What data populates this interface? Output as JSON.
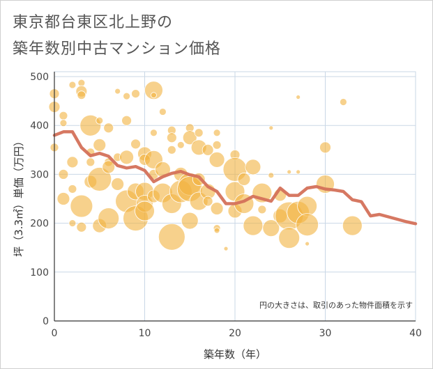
{
  "header": {
    "title_line1": "東京都台東区北上野の",
    "title_line2": "築年数別中古マンション価格"
  },
  "colors": {
    "bubble": "#f2b340",
    "line": "#d4715a",
    "grid": "#c9d7e6",
    "axis": "#333333"
  },
  "chart_data": {
    "type": "scatter",
    "title": "東京都台東区北上野の 築年数別中古マンション価格",
    "xlabel": "築年数（年）",
    "ylabel": "坪（3.3㎡）単価（万円）",
    "xlim": [
      0,
      40
    ],
    "ylim": [
      0,
      510
    ],
    "x_ticks": [
      0,
      10,
      20,
      30,
      40
    ],
    "y_ticks": [
      0,
      100,
      200,
      300,
      400,
      500
    ],
    "grid": true,
    "note": "円の大きさは、取引のあった物件面積を示す",
    "bubbles": [
      {
        "x": 0,
        "y": 465,
        "s": 7
      },
      {
        "x": 0,
        "y": 438,
        "s": 8
      },
      {
        "x": 0,
        "y": 355,
        "s": 6
      },
      {
        "x": 1,
        "y": 420,
        "s": 6
      },
      {
        "x": 1,
        "y": 405,
        "s": 5
      },
      {
        "x": 1,
        "y": 300,
        "s": 7
      },
      {
        "x": 1,
        "y": 250,
        "s": 9
      },
      {
        "x": 2,
        "y": 483,
        "s": 5
      },
      {
        "x": 2,
        "y": 325,
        "s": 8
      },
      {
        "x": 2,
        "y": 270,
        "s": 6
      },
      {
        "x": 2,
        "y": 200,
        "s": 5
      },
      {
        "x": 3,
        "y": 487,
        "s": 5
      },
      {
        "x": 3,
        "y": 470,
        "s": 8
      },
      {
        "x": 3,
        "y": 462,
        "s": 6
      },
      {
        "x": 3,
        "y": 235,
        "s": 16
      },
      {
        "x": 3,
        "y": 192,
        "s": 7
      },
      {
        "x": 4,
        "y": 400,
        "s": 15
      },
      {
        "x": 4,
        "y": 345,
        "s": 6
      },
      {
        "x": 4,
        "y": 325,
        "s": 6
      },
      {
        "x": 4,
        "y": 285,
        "s": 9
      },
      {
        "x": 5,
        "y": 410,
        "s": 5
      },
      {
        "x": 5,
        "y": 360,
        "s": 9
      },
      {
        "x": 5,
        "y": 290,
        "s": 17
      },
      {
        "x": 5,
        "y": 195,
        "s": 10
      },
      {
        "x": 6,
        "y": 395,
        "s": 7
      },
      {
        "x": 6,
        "y": 325,
        "s": 6
      },
      {
        "x": 6,
        "y": 315,
        "s": 9
      },
      {
        "x": 6,
        "y": 210,
        "s": 15
      },
      {
        "x": 7,
        "y": 470,
        "s": 4
      },
      {
        "x": 7,
        "y": 335,
        "s": 6
      },
      {
        "x": 7,
        "y": 280,
        "s": 9
      },
      {
        "x": 8,
        "y": 460,
        "s": 5
      },
      {
        "x": 8,
        "y": 410,
        "s": 7
      },
      {
        "x": 8,
        "y": 335,
        "s": 10
      },
      {
        "x": 8,
        "y": 245,
        "s": 16
      },
      {
        "x": 9,
        "y": 465,
        "s": 6
      },
      {
        "x": 9,
        "y": 362,
        "s": 7
      },
      {
        "x": 9,
        "y": 265,
        "s": 12
      },
      {
        "x": 9,
        "y": 210,
        "s": 18
      },
      {
        "x": 10,
        "y": 342,
        "s": 10
      },
      {
        "x": 10,
        "y": 330,
        "s": 8
      },
      {
        "x": 10,
        "y": 265,
        "s": 13
      },
      {
        "x": 10,
        "y": 240,
        "s": 12
      },
      {
        "x": 10,
        "y": 225,
        "s": 14
      },
      {
        "x": 11,
        "y": 472,
        "s": 13
      },
      {
        "x": 11,
        "y": 462,
        "s": 4
      },
      {
        "x": 11,
        "y": 385,
        "s": 5
      },
      {
        "x": 11,
        "y": 330,
        "s": 13
      },
      {
        "x": 11,
        "y": 300,
        "s": 7
      },
      {
        "x": 11,
        "y": 255,
        "s": 9
      },
      {
        "x": 12,
        "y": 428,
        "s": 5
      },
      {
        "x": 12,
        "y": 310,
        "s": 11
      },
      {
        "x": 12,
        "y": 262,
        "s": 14
      },
      {
        "x": 13,
        "y": 390,
        "s": 6
      },
      {
        "x": 13,
        "y": 375,
        "s": 7
      },
      {
        "x": 13,
        "y": 350,
        "s": 6
      },
      {
        "x": 13,
        "y": 240,
        "s": 14
      },
      {
        "x": 13,
        "y": 172,
        "s": 19
      },
      {
        "x": 14,
        "y": 360,
        "s": 5
      },
      {
        "x": 14,
        "y": 300,
        "s": 10
      },
      {
        "x": 14,
        "y": 265,
        "s": 16
      },
      {
        "x": 15,
        "y": 395,
        "s": 6
      },
      {
        "x": 15,
        "y": 375,
        "s": 10
      },
      {
        "x": 15,
        "y": 280,
        "s": 16
      },
      {
        "x": 15,
        "y": 270,
        "s": 18
      },
      {
        "x": 15,
        "y": 205,
        "s": 12
      },
      {
        "x": 16,
        "y": 385,
        "s": 6
      },
      {
        "x": 16,
        "y": 355,
        "s": 11
      },
      {
        "x": 16,
        "y": 290,
        "s": 9
      },
      {
        "x": 16,
        "y": 245,
        "s": 13
      },
      {
        "x": 17,
        "y": 350,
        "s": 8
      },
      {
        "x": 17,
        "y": 265,
        "s": 11
      },
      {
        "x": 17,
        "y": 245,
        "s": 7
      },
      {
        "x": 18,
        "y": 385,
        "s": 5
      },
      {
        "x": 18,
        "y": 360,
        "s": 6
      },
      {
        "x": 18,
        "y": 330,
        "s": 11
      },
      {
        "x": 18,
        "y": 230,
        "s": 9
      },
      {
        "x": 18,
        "y": 190,
        "s": 5
      },
      {
        "x": 18,
        "y": 185,
        "s": 4
      },
      {
        "x": 19,
        "y": 148,
        "s": 3
      },
      {
        "x": 20,
        "y": 340,
        "s": 7
      },
      {
        "x": 20,
        "y": 310,
        "s": 17
      },
      {
        "x": 20,
        "y": 265,
        "s": 14
      },
      {
        "x": 20,
        "y": 225,
        "s": 10
      },
      {
        "x": 21,
        "y": 290,
        "s": 9
      },
      {
        "x": 21,
        "y": 240,
        "s": 14
      },
      {
        "x": 22,
        "y": 315,
        "s": 11
      },
      {
        "x": 22,
        "y": 195,
        "s": 14
      },
      {
        "x": 23,
        "y": 262,
        "s": 14
      },
      {
        "x": 23,
        "y": 228,
        "s": 6
      },
      {
        "x": 24,
        "y": 395,
        "s": 3
      },
      {
        "x": 24,
        "y": 298,
        "s": 4
      },
      {
        "x": 24,
        "y": 190,
        "s": 12
      },
      {
        "x": 25,
        "y": 258,
        "s": 9
      },
      {
        "x": 25,
        "y": 215,
        "s": 10
      },
      {
        "x": 26,
        "y": 305,
        "s": 3
      },
      {
        "x": 26,
        "y": 215,
        "s": 20
      },
      {
        "x": 26,
        "y": 170,
        "s": 15
      },
      {
        "x": 27,
        "y": 458,
        "s": 3
      },
      {
        "x": 27,
        "y": 305,
        "s": 3
      },
      {
        "x": 27,
        "y": 222,
        "s": 16
      },
      {
        "x": 28,
        "y": 235,
        "s": 14
      },
      {
        "x": 28,
        "y": 197,
        "s": 16
      },
      {
        "x": 28,
        "y": 158,
        "s": 3
      },
      {
        "x": 30,
        "y": 355,
        "s": 8
      },
      {
        "x": 30,
        "y": 280,
        "s": 13
      },
      {
        "x": 32,
        "y": 448,
        "s": 5
      },
      {
        "x": 33,
        "y": 195,
        "s": 14
      }
    ],
    "series": [
      {
        "x": [
          0,
          1,
          2,
          3,
          4,
          5,
          6,
          7,
          8,
          9,
          10,
          11,
          12,
          13,
          14,
          15,
          16,
          17,
          18,
          19,
          20,
          21,
          22,
          23,
          24,
          25,
          26,
          27,
          28,
          29,
          30,
          31,
          32,
          33,
          34,
          35,
          36,
          37,
          38,
          39,
          40
        ],
        "values": [
          380,
          387,
          387,
          355,
          338,
          343,
          337,
          318,
          313,
          316,
          308,
          285,
          295,
          302,
          306,
          299,
          295,
          275,
          265,
          240,
          240,
          245,
          255,
          250,
          245,
          272,
          257,
          257,
          272,
          275,
          270,
          268,
          265,
          248,
          244,
          215,
          218,
          213,
          208,
          203,
          199
        ]
      }
    ]
  }
}
